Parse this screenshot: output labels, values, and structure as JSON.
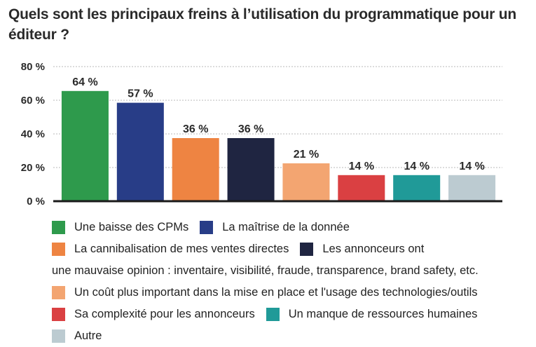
{
  "title": "Quels sont les principaux freins à l’utilisation du programmatique pour un éditeur ?",
  "chart_data": {
    "type": "bar",
    "title": "Quels sont les principaux freins à l’utilisation du programmatique pour un éditeur ?",
    "xlabel": "",
    "ylabel": "",
    "ylim": [
      0,
      80
    ],
    "yticks": [
      0,
      20,
      40,
      60,
      80
    ],
    "ytick_labels": [
      "0 %",
      "20 %",
      "40 %",
      "60 %",
      "80 %"
    ],
    "grid": true,
    "legend_position": "bottom",
    "categories": [
      "Une baisse des CPMs",
      "La maîtrise de la donnée",
      "La cannibalisation de mes ventes directes",
      "Les annonceurs ont une mauvaise opinion : inventaire, visibilité, fraude, transparence, brand safety, etc.",
      "Un coût plus important dans la mise en place et l'usage des technologies/outils",
      "Sa complexité pour les annonceurs",
      "Un manque de ressources humaines",
      "Autre"
    ],
    "values": [
      64,
      57,
      36,
      36,
      21,
      14,
      14,
      14
    ],
    "data_labels": [
      "64 %",
      "57 %",
      "36 %",
      "36 %",
      "21 %",
      "14 %",
      "14 %",
      "14 %"
    ],
    "colors": [
      "#2e9a4c",
      "#283d87",
      "#ee8442",
      "#1f2541",
      "#f3a571",
      "#da4042",
      "#209a98",
      "#bccbd1"
    ]
  },
  "legend": {
    "row1": [
      "Une baisse des CPMs",
      "La maîtrise de la donnée"
    ],
    "row2": [
      "La cannibalisation de mes ventes directes",
      "Les annonceurs ont"
    ],
    "row3": "une mauvaise opinion : inventaire, visibilité, fraude, transparence, brand safety, etc.",
    "row4": [
      "Un coût plus important dans la mise en place et l'usage des technologies/outils"
    ],
    "row5": [
      "Sa complexité pour les annonceurs",
      "Un manque de ressources humaines"
    ],
    "row6": [
      "Autre"
    ]
  }
}
